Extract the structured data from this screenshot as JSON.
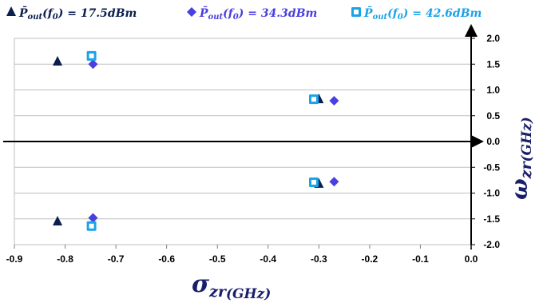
{
  "chart_data": {
    "type": "scatter",
    "title": "",
    "xlabel": "σ_zr (GHz)",
    "ylabel": "ω_zr (GHz)",
    "xlabel_main": "σ",
    "xlabel_sub": "zr",
    "xlabel_unit": "(GHz)",
    "ylabel_main": "ω",
    "ylabel_sub": "zr",
    "ylabel_unit": "(GHz)",
    "xlim": [
      -0.9,
      0.0
    ],
    "ylim": [
      -2.0,
      2.0
    ],
    "x_ticks": [
      "-0.9",
      "-0.8",
      "-0.7",
      "-0.6",
      "-0.5",
      "-0.4",
      "-0.3",
      "-0.2",
      "-0.1",
      "0.0"
    ],
    "y_ticks": [
      "2.0",
      "1.5",
      "1.0",
      "0.5",
      "0.0",
      "-0.5",
      "-1.0",
      "-1.5",
      "-2.0"
    ],
    "grid": "horizontal",
    "legend_position": "top",
    "series": [
      {
        "name": "P̄out(f0) = 17.5dBm",
        "legend_parts": [
          "P̄",
          "out",
          "(f",
          "0",
          ") = 17.5dBm"
        ],
        "marker": "triangle",
        "color": "#0b1f4f",
        "points": [
          [
            -0.815,
            1.55
          ],
          [
            -0.815,
            -1.55
          ],
          [
            -0.3,
            0.82
          ],
          [
            -0.3,
            -0.82
          ]
        ]
      },
      {
        "name": "P̄out(f0) = 34.3dBm",
        "legend_parts": [
          "P̄",
          "out",
          "(f",
          "0",
          ") = 34.3dBm"
        ],
        "marker": "diamond",
        "color": "#4a3fe0",
        "points": [
          [
            -0.745,
            1.5
          ],
          [
            -0.745,
            -1.48
          ],
          [
            -0.27,
            0.79
          ],
          [
            -0.27,
            -0.78
          ]
        ]
      },
      {
        "name": "P̄out(f0) = 42.6dBm",
        "legend_parts": [
          "P̄",
          "out",
          "(f",
          "0",
          ") = 42.6dBm"
        ],
        "marker": "square",
        "color": "#1ba3e8",
        "points": [
          [
            -0.748,
            1.66
          ],
          [
            -0.748,
            -1.64
          ],
          [
            -0.31,
            0.82
          ],
          [
            -0.31,
            -0.79
          ]
        ]
      }
    ]
  }
}
